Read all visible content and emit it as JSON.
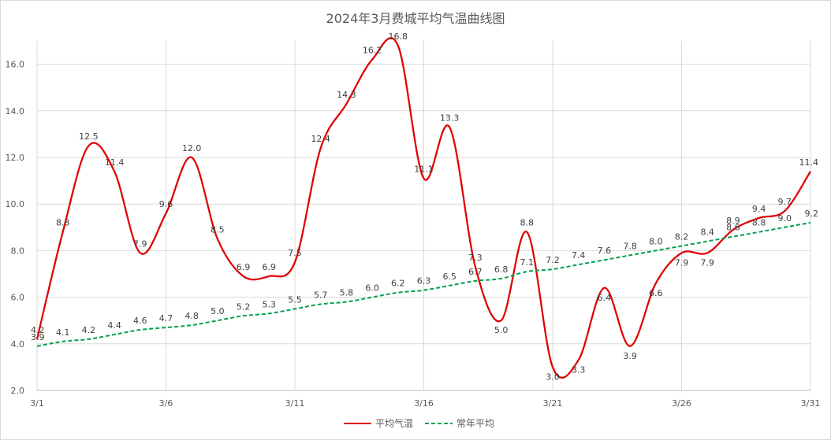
{
  "chart_data": {
    "type": "line",
    "title": "2024年3月费城平均气温曲线图",
    "xlabel": "",
    "ylabel": "",
    "x": [
      "3/1",
      "3/2",
      "3/3",
      "3/4",
      "3/5",
      "3/6",
      "3/7",
      "3/8",
      "3/9",
      "3/10",
      "3/11",
      "3/12",
      "3/13",
      "3/14",
      "3/15",
      "3/16",
      "3/17",
      "3/18",
      "3/19",
      "3/20",
      "3/21",
      "3/22",
      "3/23",
      "3/24",
      "3/25",
      "3/26",
      "3/27",
      "3/28",
      "3/29",
      "3/30",
      "3/31"
    ],
    "x_tick_labels": [
      "3/1",
      "3/6",
      "3/11",
      "3/16",
      "3/21",
      "3/26",
      "3/31"
    ],
    "ylim": [
      2.0,
      17.0
    ],
    "y_ticks": [
      "2.0",
      "4.0",
      "6.0",
      "8.0",
      "10.0",
      "12.0",
      "14.0",
      "16.0"
    ],
    "grid": true,
    "legend_position": "bottom",
    "series": [
      {
        "name": "平均气温",
        "color": "#e00000",
        "style": "solid",
        "values": [
          4.2,
          8.8,
          12.5,
          11.4,
          7.9,
          9.6,
          12.0,
          8.5,
          6.9,
          6.9,
          7.5,
          12.4,
          14.3,
          16.2,
          16.8,
          11.1,
          13.3,
          7.3,
          5.0,
          8.8,
          3.0,
          3.3,
          6.4,
          3.9,
          6.6,
          7.9,
          7.9,
          8.9,
          9.4,
          9.7,
          11.4
        ]
      },
      {
        "name": "常年平均",
        "color": "#00a050",
        "style": "dashed",
        "values": [
          3.9,
          4.1,
          4.2,
          4.4,
          4.6,
          4.7,
          4.8,
          5.0,
          5.2,
          5.3,
          5.5,
          5.7,
          5.8,
          6.0,
          6.2,
          6.3,
          6.5,
          6.7,
          6.8,
          7.1,
          7.2,
          7.4,
          7.6,
          7.8,
          8.0,
          8.2,
          8.4,
          8.6,
          8.8,
          9.0,
          9.2
        ]
      }
    ]
  }
}
